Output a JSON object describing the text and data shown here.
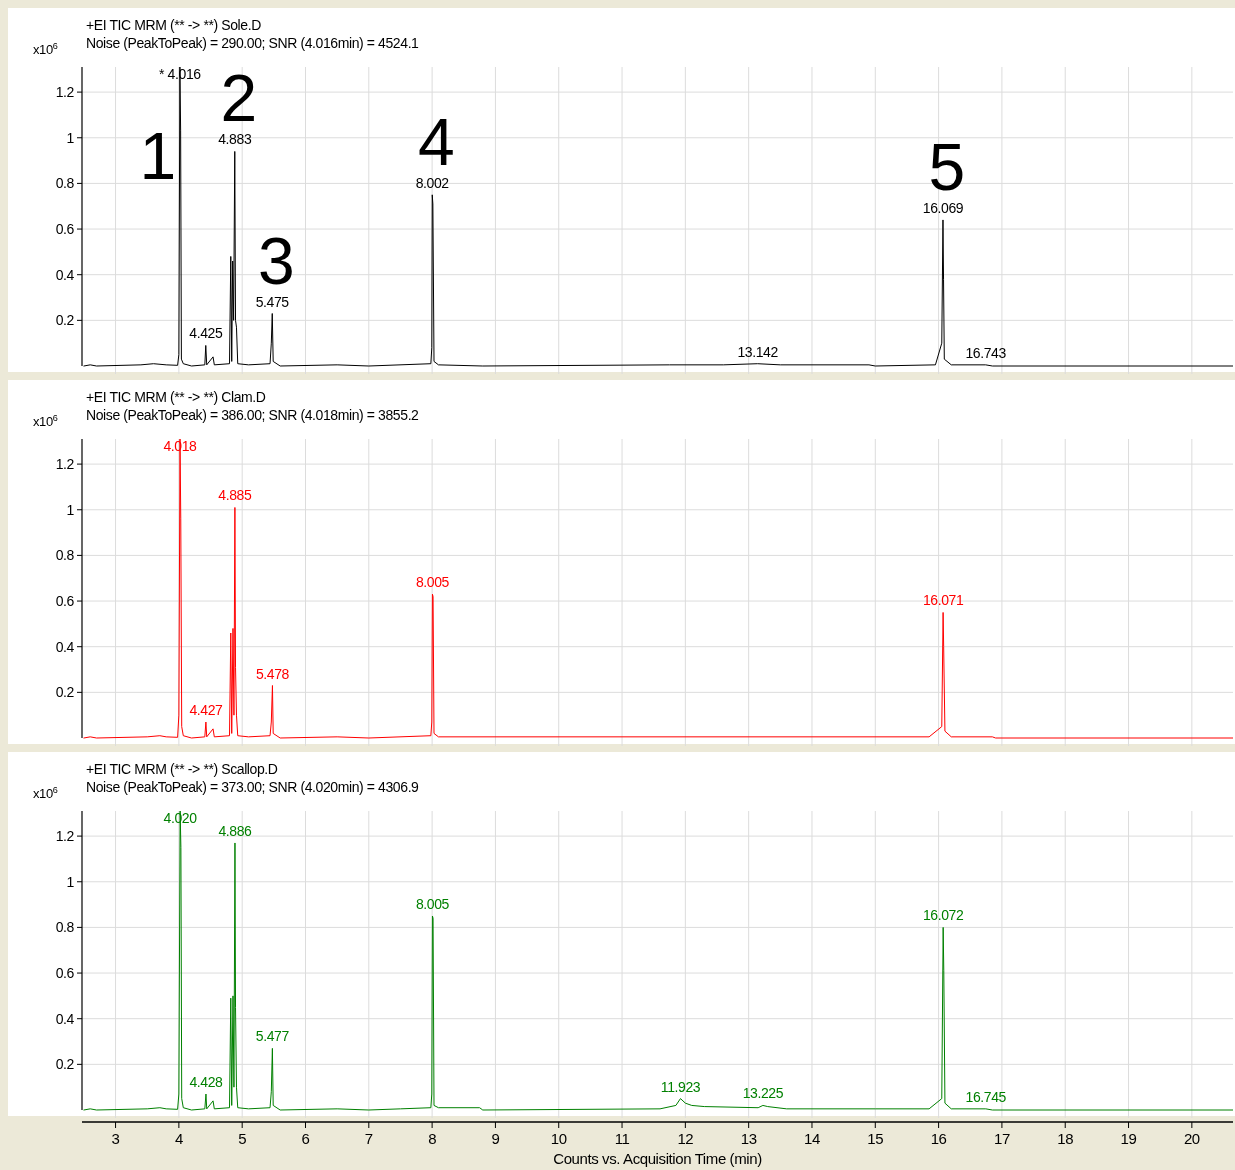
{
  "chart_data": [
    {
      "type": "line",
      "title": "+EI TIC MRM (** -> **) Sole.D",
      "subtitle": "Noise (PeakToPeak) = 290.00; SNR (4.016min) = 4524.1",
      "ylabel": "x10$^{6}$",
      "xlim": [
        2.47,
        20.65
      ],
      "ylim": [
        0,
        1.31
      ],
      "xticks": [
        3,
        4,
        5,
        6,
        7,
        8,
        9,
        10,
        11,
        12,
        13,
        14,
        15,
        16,
        17,
        18,
        19,
        20
      ],
      "yticks": [
        0.2,
        0.4,
        0.6,
        0.8,
        1,
        1.2
      ],
      "tick_labels": "y",
      "grid": true,
      "series": [
        {
          "color": "#000000",
          "x": [
            2.5,
            2.6,
            2.7,
            3.4,
            3.6,
            3.8,
            3.98,
            4.0,
            4.016,
            4.028,
            4.04,
            4.07,
            4.2,
            4.41,
            4.425,
            4.44,
            4.54,
            4.56,
            4.8,
            4.82,
            4.835,
            4.85,
            4.865,
            4.883,
            4.895,
            4.91,
            4.93,
            5.1,
            5.44,
            5.46,
            5.475,
            5.49,
            5.6,
            6.5,
            7.0,
            7.98,
            7.995,
            8.002,
            8.012,
            8.03,
            8.1,
            8.8,
            11.75,
            12.6,
            13.142,
            13.5,
            14.9,
            15.0,
            15.95,
            16.05,
            16.069,
            16.078,
            16.09,
            16.2,
            16.743,
            16.85,
            20.65
          ],
          "values": [
            0,
            0.005,
            0,
            0.005,
            0.01,
            0.005,
            0.003,
            0.05,
            1.31,
            1.03,
            0.03,
            0.01,
            0,
            0.005,
            0.09,
            0.005,
            0.04,
            0.005,
            0.01,
            0.48,
            0.02,
            0.46,
            0.2,
            0.94,
            0.2,
            0.17,
            0.01,
            0.005,
            0.01,
            0.1,
            0.23,
            0.02,
            0,
            0.005,
            0,
            0.01,
            0.08,
            0.75,
            0.71,
            0.02,
            0.005,
            0,
            0.005,
            0.005,
            0.01,
            0.005,
            0.005,
            0,
            0.005,
            0.1,
            0.64,
            0.38,
            0.03,
            0.005,
            0.005,
            0,
            0
          ]
        }
      ],
      "annotations": [
        {
          "text": "* 4.016",
          "x": 4.016,
          "y": 1.31
        },
        {
          "text": "4.425",
          "x": 4.425,
          "y": 0.09
        },
        {
          "text": "4.883",
          "x": 4.883,
          "y": 0.94
        },
        {
          "text": "5.475",
          "x": 5.475,
          "y": 0.23
        },
        {
          "text": "8.002",
          "x": 8.002,
          "y": 0.75
        },
        {
          "text": "13.142",
          "x": 13.142,
          "y": 0.01
        },
        {
          "text": "16.069",
          "x": 16.069,
          "y": 0.64
        },
        {
          "text": "16.743",
          "x": 16.743,
          "y": 0.005
        },
        {
          "text": "1",
          "x": 4.016,
          "y": 1.31
        },
        {
          "text": "2",
          "x": 4.883,
          "y": 0.94
        },
        {
          "text": "3",
          "x": 5.475,
          "y": 0.23
        },
        {
          "text": "4",
          "x": 8.002,
          "y": 0.75
        },
        {
          "text": "5",
          "x": 16.069,
          "y": 0.64
        }
      ]
    },
    {
      "type": "line",
      "title": "+EI TIC MRM (** -> **) Clam.D",
      "subtitle": "Noise (PeakToPeak) = 386.00; SNR (4.018min) = 3855.2",
      "ylabel": "x10$^{6}$",
      "xlim": [
        2.47,
        20.65
      ],
      "ylim": [
        0,
        1.31
      ],
      "xticks": [
        3,
        4,
        5,
        6,
        7,
        8,
        9,
        10,
        11,
        12,
        13,
        14,
        15,
        16,
        17,
        18,
        19,
        20
      ],
      "yticks": [
        0.2,
        0.4,
        0.6,
        0.8,
        1,
        1.2
      ],
      "tick_labels": "y",
      "grid": true,
      "series": [
        {
          "color": "#ff0000",
          "x": [
            2.5,
            2.6,
            2.7,
            3.5,
            3.7,
            3.8,
            3.98,
            4.0,
            4.018,
            4.03,
            4.045,
            4.07,
            4.2,
            4.41,
            4.427,
            4.44,
            4.54,
            4.56,
            4.8,
            4.82,
            4.835,
            4.855,
            4.87,
            4.885,
            4.895,
            4.91,
            4.93,
            5.1,
            5.44,
            5.46,
            5.478,
            5.49,
            5.6,
            6.5,
            7.0,
            7.98,
            7.995,
            8.005,
            8.015,
            8.03,
            8.1,
            15.85,
            16.05,
            16.071,
            16.08,
            16.1,
            16.2,
            16.85,
            16.9,
            20.65
          ],
          "values": [
            0,
            0.005,
            0,
            0.005,
            0.01,
            0.005,
            0.003,
            0.1,
            1.31,
            0.96,
            0.05,
            0.01,
            0,
            0.005,
            0.07,
            0.005,
            0.04,
            0.005,
            0.01,
            0.46,
            0.02,
            0.48,
            0.1,
            1.01,
            0.31,
            0.1,
            0.01,
            0.005,
            0.01,
            0.07,
            0.23,
            0.02,
            0,
            0.005,
            0,
            0.01,
            0.07,
            0.63,
            0.62,
            0.02,
            0.005,
            0.005,
            0.05,
            0.55,
            0.4,
            0.03,
            0.005,
            0.005,
            0,
            0
          ]
        }
      ],
      "annotations": [
        {
          "text": "4.018",
          "x": 4.018,
          "y": 1.31
        },
        {
          "text": "4.427",
          "x": 4.427,
          "y": 0.07
        },
        {
          "text": "4.885",
          "x": 4.885,
          "y": 1.01
        },
        {
          "text": "5.478",
          "x": 5.478,
          "y": 0.23
        },
        {
          "text": "8.005",
          "x": 8.005,
          "y": 0.63
        },
        {
          "text": "16.071",
          "x": 16.071,
          "y": 0.55
        }
      ]
    },
    {
      "type": "line",
      "title": "+EI TIC MRM (** -> **) Scallop.D",
      "subtitle": "Noise (PeakToPeak) = 373.00; SNR (4.020min) = 4306.9",
      "ylabel": "x10$^{6}$",
      "xlabel": "Counts vs. Acquisition Time (min)",
      "xlim": [
        2.47,
        20.65
      ],
      "ylim": [
        0,
        1.31
      ],
      "xticks": [
        3,
        4,
        5,
        6,
        7,
        8,
        9,
        10,
        11,
        12,
        13,
        14,
        15,
        16,
        17,
        18,
        19,
        20
      ],
      "yticks": [
        0.2,
        0.4,
        0.6,
        0.8,
        1,
        1.2
      ],
      "grid": true,
      "series": [
        {
          "color": "#008000",
          "x": [
            2.5,
            2.6,
            2.7,
            3.5,
            3.7,
            3.8,
            3.98,
            4.0,
            4.02,
            4.032,
            4.045,
            4.07,
            4.2,
            4.41,
            4.428,
            4.44,
            4.54,
            4.56,
            4.8,
            4.82,
            4.835,
            4.855,
            4.87,
            4.886,
            4.895,
            4.91,
            4.93,
            5.1,
            5.44,
            5.46,
            5.477,
            5.49,
            5.6,
            6.5,
            7.0,
            7.5,
            7.98,
            7.995,
            8.005,
            8.015,
            8.03,
            8.1,
            8.75,
            8.8,
            11.6,
            11.85,
            11.923,
            12.0,
            12.1,
            12.3,
            13.15,
            13.225,
            13.3,
            13.6,
            15.0,
            15.85,
            16.05,
            16.072,
            16.082,
            16.1,
            16.2,
            16.745,
            16.85,
            20.65
          ],
          "values": [
            0,
            0.005,
            0,
            0.005,
            0.01,
            0.005,
            0.003,
            0.07,
            1.31,
            1.15,
            0.05,
            0.01,
            0,
            0.005,
            0.07,
            0.005,
            0.04,
            0.005,
            0.01,
            0.49,
            0.02,
            0.5,
            0.1,
            1.17,
            0.45,
            0.1,
            0.01,
            0.005,
            0.01,
            0.08,
            0.27,
            0.02,
            0,
            0.005,
            0,
            0.005,
            0.01,
            0.07,
            0.85,
            0.84,
            0.02,
            0.01,
            0.01,
            0,
            0.005,
            0.02,
            0.05,
            0.03,
            0.02,
            0.015,
            0.01,
            0.02,
            0.015,
            0.005,
            0.005,
            0.005,
            0.05,
            0.8,
            0.61,
            0.03,
            0.005,
            0.005,
            0,
            0
          ]
        }
      ],
      "annotations": [
        {
          "text": "4.020",
          "x": 4.02,
          "y": 1.31
        },
        {
          "text": "4.428",
          "x": 4.428,
          "y": 0.07
        },
        {
          "text": "4.886",
          "x": 4.886,
          "y": 1.17
        },
        {
          "text": "5.477",
          "x": 5.477,
          "y": 0.27
        },
        {
          "text": "8.005",
          "x": 8.005,
          "y": 0.85
        },
        {
          "text": "11.923",
          "x": 11.923,
          "y": 0.05
        },
        {
          "text": "13.225",
          "x": 13.225,
          "y": 0.02
        },
        {
          "text": "16.072",
          "x": 16.072,
          "y": 0.8
        },
        {
          "text": "16.745",
          "x": 16.745,
          "y": 0.005
        }
      ]
    }
  ]
}
